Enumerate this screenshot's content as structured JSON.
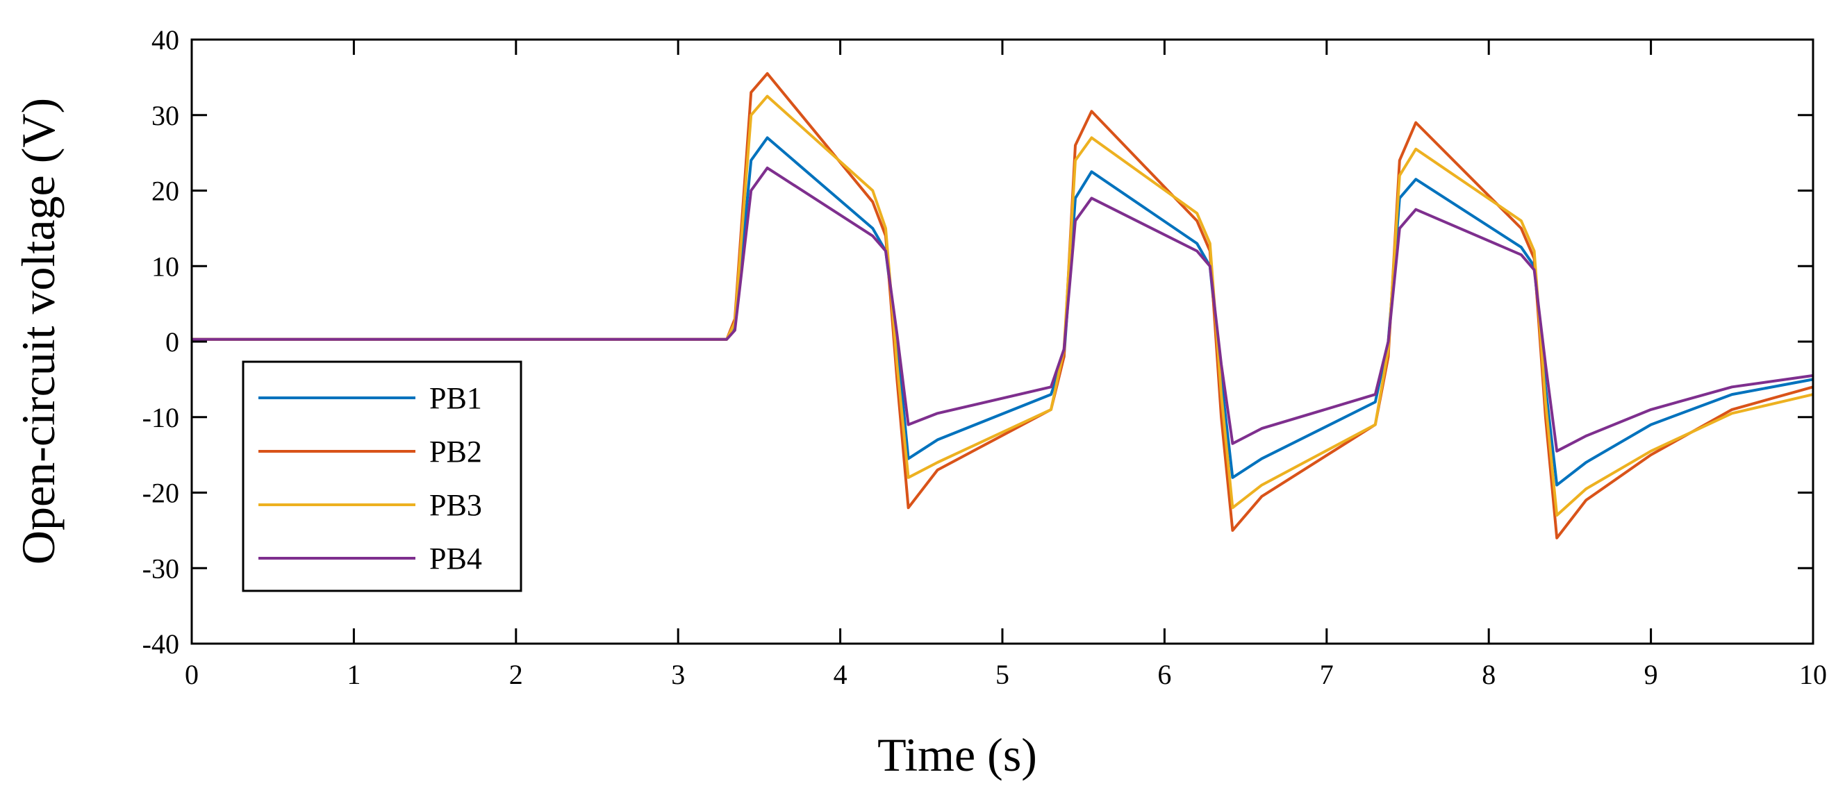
{
  "chart_data": {
    "type": "line",
    "title": "",
    "xlabel": "Time (s)",
    "ylabel": "Open-circuit voltage (V)",
    "xlim": [
      0,
      10
    ],
    "ylim": [
      -40,
      40
    ],
    "xticks": [
      0,
      1,
      2,
      3,
      4,
      5,
      6,
      7,
      8,
      9,
      10
    ],
    "xtick_labels": [
      "0",
      "1",
      "2",
      "3",
      "4",
      "5",
      "6",
      "7",
      "8",
      "9",
      "10"
    ],
    "yticks": [
      40,
      30,
      20,
      10,
      0,
      -10,
      -20,
      -30,
      -40
    ],
    "ytick_labels": [
      "40",
      "30",
      "20",
      "10",
      "0",
      "-10",
      "-20",
      "-30",
      "-40"
    ],
    "grid": false,
    "legend": {
      "position": "bottom-left",
      "entries": [
        "PB1",
        "PB2",
        "PB3",
        "PB4"
      ]
    },
    "x": [
      0,
      3.3,
      3.35,
      3.45,
      3.55,
      4.2,
      4.28,
      4.35,
      4.42,
      4.6,
      5.3,
      5.38,
      5.45,
      5.55,
      6.2,
      6.28,
      6.35,
      6.42,
      6.6,
      7.3,
      7.38,
      7.45,
      7.55,
      8.2,
      8.28,
      8.35,
      8.42,
      8.6,
      9.0,
      9.5,
      10.0
    ],
    "series": [
      {
        "name": "PB1",
        "color": "#0072BD",
        "values": [
          0.3,
          0.3,
          2,
          24,
          27,
          15,
          12,
          0,
          -15.5,
          -13,
          -7,
          -2,
          19,
          22.5,
          13,
          10,
          -5,
          -18,
          -15.5,
          -8,
          0,
          19,
          21.5,
          12.5,
          10,
          -6,
          -19,
          -16,
          -11,
          -7,
          -5
        ]
      },
      {
        "name": "PB2",
        "color": "#D95319",
        "values": [
          0.3,
          0.3,
          3,
          33,
          35.5,
          18.5,
          14,
          -5,
          -22,
          -17,
          -9,
          -2,
          26,
          30.5,
          16,
          12,
          -10,
          -25,
          -20.5,
          -11,
          -2,
          24,
          29,
          15,
          11,
          -10,
          -26,
          -21,
          -15,
          -9,
          -6
        ]
      },
      {
        "name": "PB3",
        "color": "#EDB120",
        "values": [
          0.3,
          0.3,
          2.5,
          30,
          32.5,
          20,
          15,
          -3,
          -18,
          -16,
          -9,
          -1,
          24,
          27,
          17,
          13,
          -7,
          -22,
          -19,
          -11,
          -1,
          22,
          25.5,
          16,
          12,
          -8,
          -23,
          -19.5,
          -14.5,
          -9.5,
          -7
        ]
      },
      {
        "name": "PB4",
        "color": "#7E2F8E",
        "values": [
          0.3,
          0.3,
          1.5,
          20,
          23,
          14,
          12,
          1,
          -11,
          -9.5,
          -6,
          -1,
          16,
          19,
          12,
          10,
          -3,
          -13.5,
          -11.5,
          -7,
          0,
          15,
          17.5,
          11.5,
          9.5,
          -3,
          -14.5,
          -12.5,
          -9,
          -6,
          -4.5
        ]
      }
    ]
  }
}
